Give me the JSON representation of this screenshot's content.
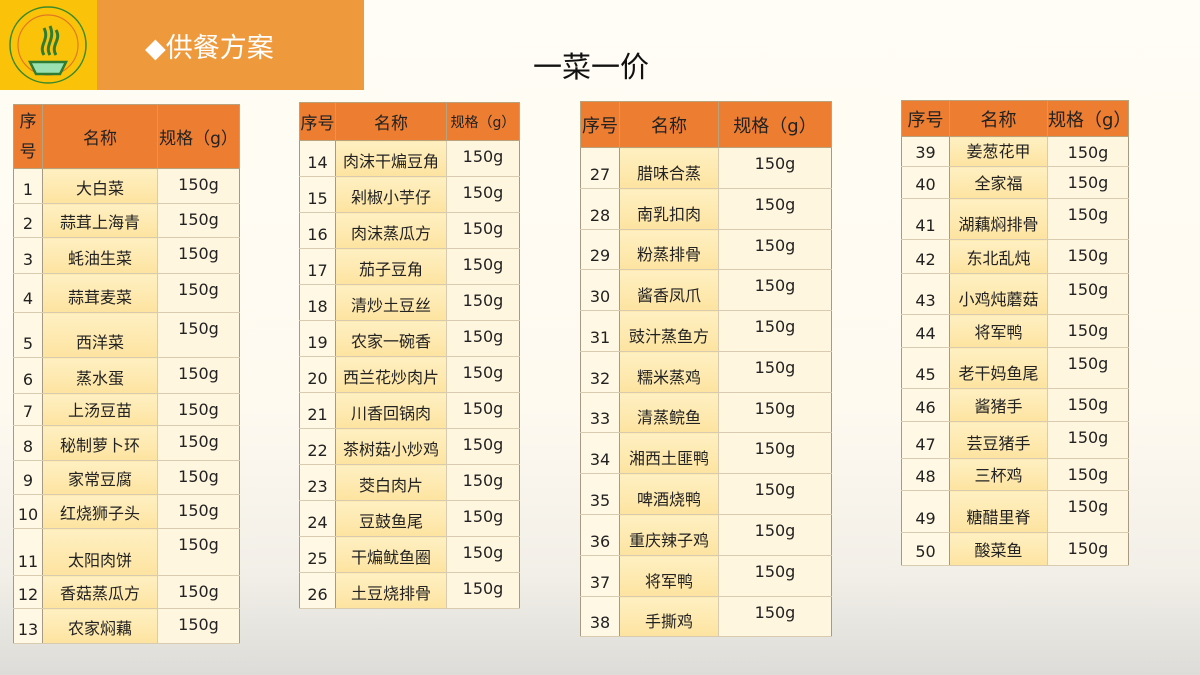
{
  "header": {
    "logo": "logo-emblem",
    "section_title": "◆供餐方案",
    "page_title": "一菜一价"
  },
  "columns": {
    "no": "序号",
    "name": "名称",
    "spec": "规格（g）"
  },
  "tables": [
    [
      [
        "1",
        "大白菜",
        "150g"
      ],
      [
        "2",
        "蒜茸上海青",
        "150g"
      ],
      [
        "3",
        "蚝油生菜",
        "150g"
      ],
      [
        "4",
        "蒜茸麦菜",
        "150g"
      ],
      [
        "5",
        "西洋菜",
        "150g"
      ],
      [
        "6",
        "蒸水蛋",
        "150g"
      ],
      [
        "7",
        "上汤豆苗",
        "150g"
      ],
      [
        "8",
        "秘制萝卜环",
        "150g"
      ],
      [
        "9",
        "家常豆腐",
        "150g"
      ],
      [
        "10",
        "红烧狮子头",
        "150g"
      ],
      [
        "11",
        "太阳肉饼",
        "150g"
      ],
      [
        "12",
        "香菇蒸瓜方",
        "150g"
      ],
      [
        "13",
        "农家焖藕",
        "150g"
      ]
    ],
    [
      [
        "14",
        "肉沫干煸豆角",
        "150g"
      ],
      [
        "15",
        "剁椒小芋仔",
        "150g"
      ],
      [
        "16",
        "肉沫蒸瓜方",
        "150g"
      ],
      [
        "17",
        "茄子豆角",
        "150g"
      ],
      [
        "18",
        "清炒土豆丝",
        "150g"
      ],
      [
        "19",
        "农家一碗香",
        "150g"
      ],
      [
        "20",
        "西兰花炒肉片",
        "150g"
      ],
      [
        "21",
        "川香回锅肉",
        "150g"
      ],
      [
        "22",
        "茶树菇小炒鸡",
        "150g"
      ],
      [
        "23",
        "茭白肉片",
        "150g"
      ],
      [
        "24",
        "豆鼓鱼尾",
        "150g"
      ],
      [
        "25",
        "干煸鱿鱼圈",
        "150g"
      ],
      [
        "26",
        "土豆烧排骨",
        "150g"
      ]
    ],
    [
      [
        "27",
        "腊味合蒸",
        "150g"
      ],
      [
        "28",
        "南乳扣肉",
        "150g"
      ],
      [
        "29",
        "粉蒸排骨",
        "150g"
      ],
      [
        "30",
        "酱香凤爪",
        "150g"
      ],
      [
        "31",
        "豉汁蒸鱼方",
        "150g"
      ],
      [
        "32",
        "糯米蒸鸡",
        "150g"
      ],
      [
        "33",
        "清蒸鲩鱼",
        "150g"
      ],
      [
        "34",
        "湘西土匪鸭",
        "150g"
      ],
      [
        "35",
        "啤酒烧鸭",
        "150g"
      ],
      [
        "36",
        "重庆辣子鸡",
        "150g"
      ],
      [
        "37",
        "将军鸭",
        "150g"
      ],
      [
        "38",
        "手撕鸡",
        "150g"
      ]
    ],
    [
      [
        "39",
        "姜葱花甲",
        "150g"
      ],
      [
        "40",
        "全家福",
        "150g"
      ],
      [
        "41",
        "湖藕焖排骨",
        "150g"
      ],
      [
        "42",
        "东北乱炖",
        "150g"
      ],
      [
        "43",
        "小鸡炖蘑菇",
        "150g"
      ],
      [
        "44",
        "将军鸭",
        "150g"
      ],
      [
        "45",
        "老干妈鱼尾",
        "150g"
      ],
      [
        "46",
        "酱猪手",
        "150g"
      ],
      [
        "47",
        "芸豆猪手",
        "150g"
      ],
      [
        "48",
        "三杯鸡",
        "150g"
      ],
      [
        "49",
        "糖醋里脊",
        "150g"
      ],
      [
        "50",
        "酸菜鱼",
        "150g"
      ]
    ]
  ],
  "colors": {
    "header": "#ed7d31",
    "title_bar": "#ee9a3c",
    "logo_bg": "#fbc20a"
  }
}
